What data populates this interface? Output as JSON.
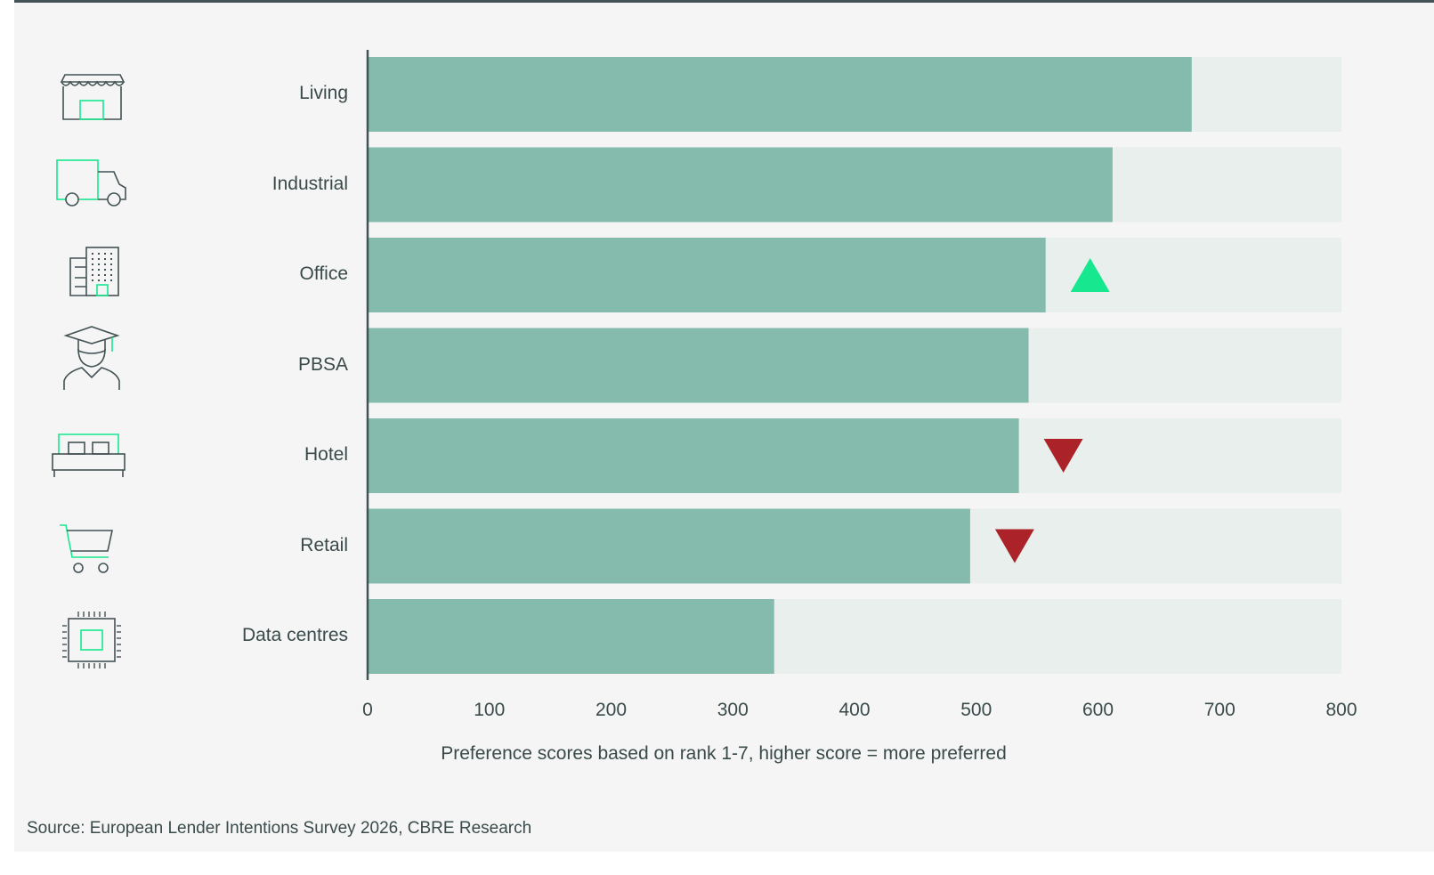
{
  "chart_data": {
    "type": "bar",
    "orientation": "horizontal",
    "categories": [
      "Living",
      "Industrial",
      "Office",
      "PBSA",
      "Hotel",
      "Retail",
      "Data centres"
    ],
    "values": [
      677,
      612,
      557,
      543,
      535,
      495,
      334
    ],
    "change_markers": [
      "",
      "",
      "up",
      "",
      "down",
      "down",
      ""
    ],
    "icons": [
      "shopfront-icon",
      "truck-icon",
      "office-building-icon",
      "graduate-icon",
      "bed-icon",
      "shopping-cart-icon",
      "microchip-icon"
    ],
    "xlim": [
      0,
      800
    ],
    "xticks": [
      "0",
      "100",
      "200",
      "300",
      "400",
      "500",
      "600",
      "700",
      "800"
    ],
    "xlabel": "Preference scores based on rank 1-7, higher score = more preferred",
    "grid": false,
    "legend": "none",
    "colors": {
      "bar": "#84bbad",
      "track": "#e9efed",
      "up": "#17e88f",
      "down": "#ab2328",
      "axis": "#435254",
      "icon_stroke": "#435254",
      "icon_accent": "#17e88f"
    }
  },
  "footer": {
    "source": "Source: European Lender Intentions Survey 2026, CBRE Research"
  }
}
